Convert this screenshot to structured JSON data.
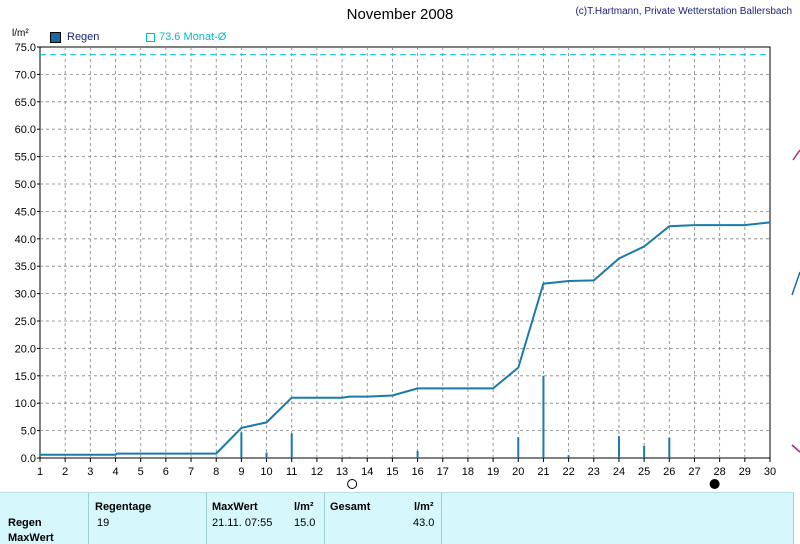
{
  "header": {
    "title": "November 2008",
    "copyright": "(c)T.Hartmann, Private Wetterstation Ballersbach",
    "y_unit": "l/m²"
  },
  "legend": {
    "rain_label": "Regen",
    "month_label": "73.6 Monat-Ø"
  },
  "colors": {
    "series": "#1a7aaa",
    "month_avg": "#00c8d6",
    "grid": "#808080",
    "stats_bg": "#d6f7fb"
  },
  "chart_data": {
    "type": "line",
    "title": "November 2008",
    "ylabel": "l/m²",
    "xlabel": "",
    "xlim": [
      1,
      30
    ],
    "ylim": [
      0,
      75
    ],
    "x_ticks": [
      1,
      2,
      3,
      4,
      5,
      6,
      7,
      8,
      9,
      10,
      11,
      12,
      13,
      14,
      15,
      16,
      17,
      18,
      19,
      20,
      21,
      22,
      23,
      24,
      25,
      26,
      27,
      28,
      29,
      30
    ],
    "y_ticks": [
      "0.0",
      "5.0",
      "10.0",
      "15.0",
      "20.0",
      "25.0",
      "30.0",
      "35.0",
      "40.0",
      "45.0",
      "50.0",
      "55.0",
      "60.0",
      "65.0",
      "70.0",
      "75.0"
    ],
    "grid": true,
    "legend_position": "top-left",
    "month_average": 73.6,
    "cumulative": [
      [
        1,
        0.6
      ],
      [
        2,
        0.6
      ],
      [
        3,
        0.6
      ],
      [
        4,
        0.6
      ],
      [
        4.05,
        0.8
      ],
      [
        5,
        0.8
      ],
      [
        6,
        0.8
      ],
      [
        7,
        0.8
      ],
      [
        8,
        0.8
      ],
      [
        9,
        5.5
      ],
      [
        10,
        6.5
      ],
      [
        11,
        11.0
      ],
      [
        12,
        11.0
      ],
      [
        13,
        11.0
      ],
      [
        13.3,
        11.2
      ],
      [
        14,
        11.2
      ],
      [
        15,
        11.4
      ],
      [
        16,
        12.7
      ],
      [
        17,
        12.7
      ],
      [
        18,
        12.7
      ],
      [
        19,
        12.7
      ],
      [
        20,
        16.5
      ],
      [
        21,
        31.8
      ],
      [
        22,
        32.3
      ],
      [
        23,
        32.4
      ],
      [
        24,
        36.4
      ],
      [
        25,
        38.6
      ],
      [
        26,
        42.3
      ],
      [
        27,
        42.5
      ],
      [
        28,
        42.5
      ],
      [
        29,
        42.5
      ],
      [
        30,
        43.0
      ]
    ],
    "daily": [
      [
        4,
        0.2
      ],
      [
        9,
        4.7
      ],
      [
        10,
        1.0
      ],
      [
        11,
        4.5
      ],
      [
        13.3,
        0.2
      ],
      [
        15,
        0.2
      ],
      [
        16,
        1.3
      ],
      [
        20,
        3.8
      ],
      [
        21,
        15.0
      ],
      [
        22,
        0.5
      ],
      [
        24,
        4.0
      ],
      [
        25,
        2.2
      ],
      [
        26,
        3.7
      ]
    ],
    "moon_phases": [
      {
        "x": 13.4,
        "phase": "full"
      },
      {
        "x": 27.8,
        "phase": "new"
      }
    ]
  },
  "stats": {
    "row_labels": [
      "Regen",
      "MaxWert"
    ],
    "headers": {
      "regentage": "Regentage",
      "maxwert": "MaxWert",
      "unit1": "l/m²",
      "gesamt": "Gesamt",
      "unit2": "l/m²"
    },
    "values": {
      "regentage": "19",
      "max_time": "21.11.  07:55",
      "max_value": "15.0",
      "gesamt": "43.0"
    }
  }
}
